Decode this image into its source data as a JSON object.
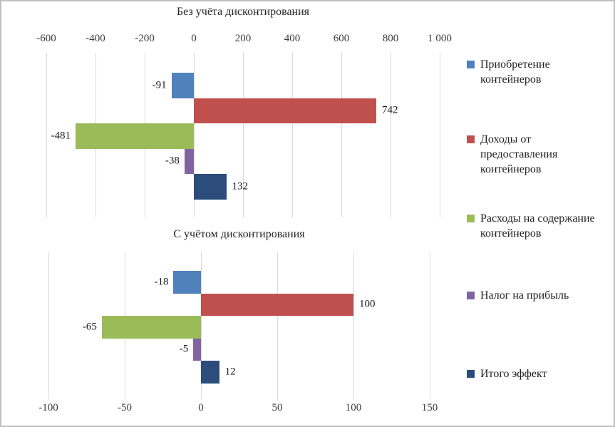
{
  "chart_data": [
    {
      "type": "bar",
      "orientation": "horizontal",
      "title": "Без учёта дисконтирования",
      "axis": {
        "min": -600,
        "max": 1000,
        "step": 200,
        "position": "top",
        "tick_labels": [
          "-600",
          "-400",
          "-200",
          "0",
          "200",
          "400",
          "600",
          "800",
          "1 000"
        ]
      },
      "grid": true,
      "series": [
        {
          "name": "Приобретение контейнеров",
          "value": -91,
          "label": "-91",
          "color": "#4F81BD"
        },
        {
          "name": "Доходы от предоставления контейнеров",
          "value": 742,
          "label": "742",
          "color": "#C0504D"
        },
        {
          "name": "Расходы на содержание контейнеров",
          "value": -481,
          "label": "-481",
          "color": "#9BBB59"
        },
        {
          "name": "Налог на прибыль",
          "value": -38,
          "label": "-38",
          "color": "#8064A2"
        },
        {
          "name": "Итого эффект",
          "value": 132,
          "label": "132",
          "color": "#2C4D7C"
        }
      ]
    },
    {
      "type": "bar",
      "orientation": "horizontal",
      "title": "С учётом дисконтирования",
      "axis": {
        "min": -100,
        "max": 150,
        "step": 50,
        "position": "bottom",
        "tick_labels": [
          "-100",
          "-50",
          "0",
          "50",
          "100",
          "150"
        ]
      },
      "grid": true,
      "series": [
        {
          "name": "Приобретение контейнеров",
          "value": -18,
          "label": "-18",
          "color": "#4F81BD"
        },
        {
          "name": "Доходы от предоставления контейнеров",
          "value": 100,
          "label": "100",
          "color": "#C0504D"
        },
        {
          "name": "Расходы на содержание контейнеров",
          "value": -65,
          "label": "-65",
          "color": "#9BBB59"
        },
        {
          "name": "Налог на прибыль",
          "value": -5,
          "label": "-5",
          "color": "#8064A2"
        },
        {
          "name": "Итого эффект",
          "value": 12,
          "label": "12",
          "color": "#2C4D7C"
        }
      ]
    }
  ],
  "legend": {
    "position": "right",
    "items": [
      {
        "label": "Приобретение\nконтейнеров",
        "color": "#4F81BD"
      },
      {
        "label": "Доходы от\nпредоставления\nконтейнеров",
        "color": "#C0504D"
      },
      {
        "label": "Расходы на содержание\nконтейнеров",
        "color": "#9BBB59"
      },
      {
        "label": "Налог на прибыль",
        "color": "#8064A2"
      },
      {
        "label": "Итого эффект",
        "color": "#2C4D7C"
      }
    ]
  },
  "colors": {
    "gridline": "#D9D9D9",
    "axis_text": "#3B3B3B",
    "label_text": "#1A1A1A",
    "border": "#C0C0C0",
    "background": "#FFFFFF"
  }
}
